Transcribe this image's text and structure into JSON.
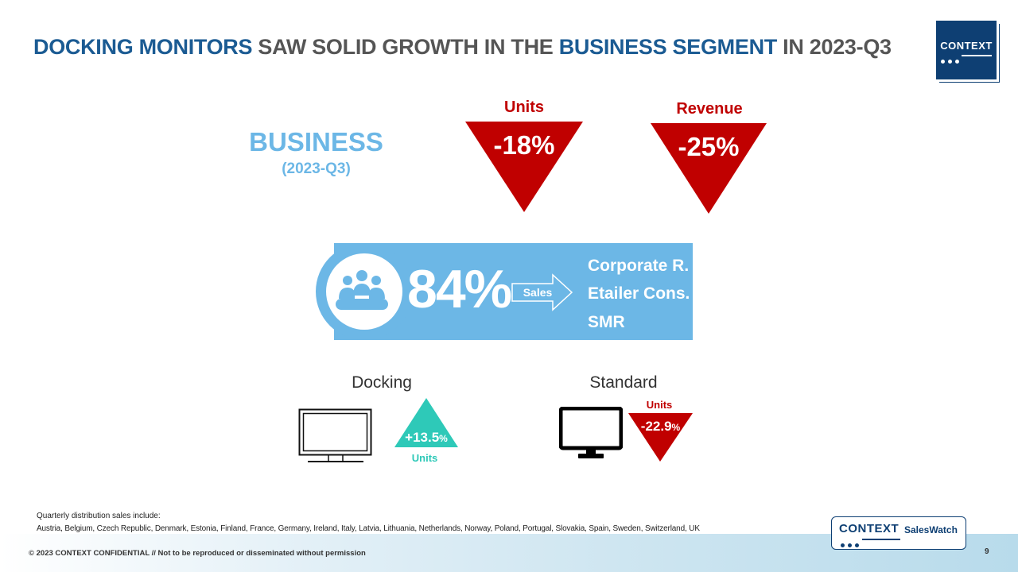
{
  "title": {
    "part1": "DOCKING MONITORS",
    "part2": " SAW SOLID GROWTH IN THE ",
    "part3": "BUSINESS SEGMENT",
    "part4": " IN 2023-Q3"
  },
  "logo": {
    "text": "CONTEXT"
  },
  "segment": {
    "name": "BUSINESS",
    "period": "(2023-Q3)"
  },
  "kpis": {
    "units": {
      "label": "Units",
      "value": "-18%"
    },
    "revenue": {
      "label": "Revenue",
      "value": "-25%"
    }
  },
  "share": {
    "icon": "group-icon",
    "value": "84%",
    "arrow_label": "Sales",
    "channels": [
      "Corporate R.",
      "Etailer Cons.",
      "SMR"
    ]
  },
  "monitors": {
    "docking": {
      "label": "Docking",
      "icon": "monitor-outline-icon",
      "value": "+13.5",
      "unit": "%",
      "metric": "Units"
    },
    "standard": {
      "label": "Standard",
      "icon": "monitor-solid-icon",
      "value": "-22.9",
      "unit": "%",
      "metric": "Units"
    }
  },
  "footnote": {
    "line1": "Quarterly distribution sales include:",
    "line2": "Austria, Belgium, Czech Republic, Denmark, Estonia, Finland, France, Germany, Ireland, Italy, Latvia, Lithuania, Netherlands, Norway, Poland, Portugal, Slovakia, Spain, Sweden, Switzerland, UK"
  },
  "footer": {
    "copyright": "© 2023 CONTEXT CONFIDENTIAL // Not to be reproduced or disseminated without permission",
    "page": "9",
    "brand_context": "CONTEXT",
    "brand_product": "SalesWatch"
  },
  "colors": {
    "title_blue": "#1b5b93",
    "title_gray": "#555555",
    "light_blue": "#6cb7e6",
    "decline_red": "#c00000",
    "growth_teal": "#2ec9b8",
    "logo_navy": "#0e3f73"
  }
}
